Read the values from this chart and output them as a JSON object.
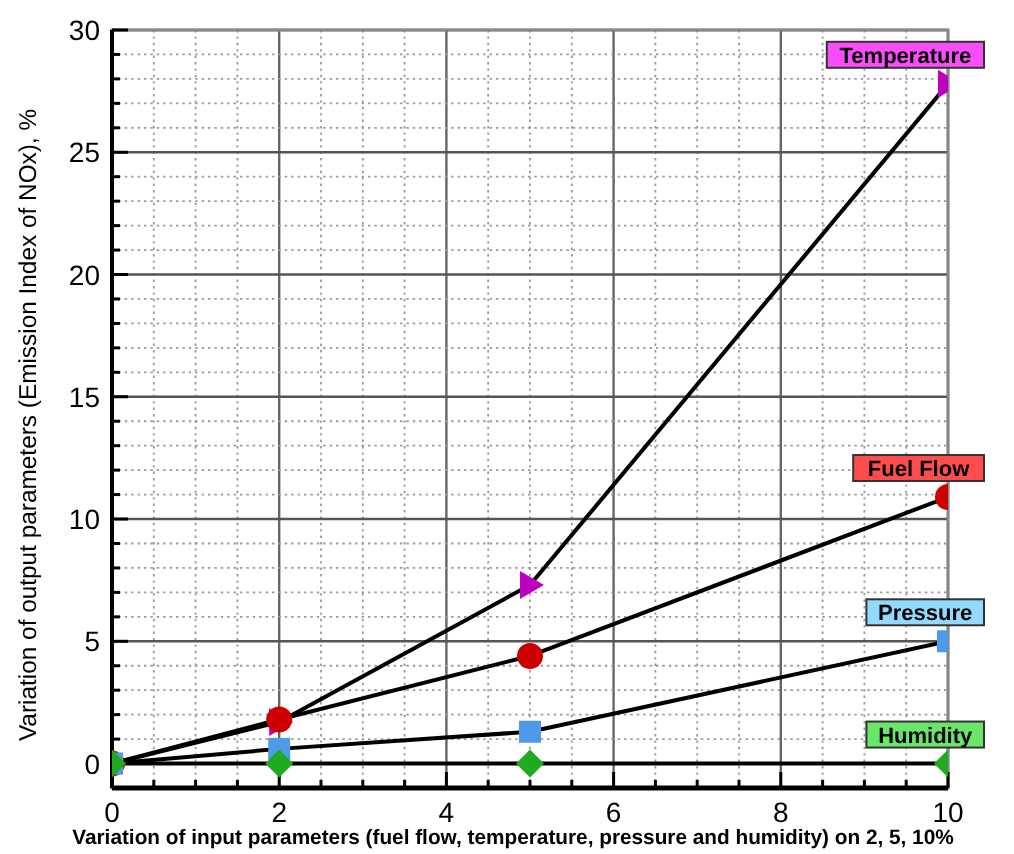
{
  "chart_data": {
    "type": "line",
    "xlabel": "Variation of input parameters (fuel flow, temperature, pressure and humidity) on 2, 5, 10%",
    "ylabel": "Variation of output parameters (Emission Index of NOx), %",
    "x": [
      0,
      2,
      5,
      10
    ],
    "series": [
      {
        "name": "Temperature",
        "color": "#c000c0",
        "marker": "triangle",
        "values": [
          0,
          1.7,
          7.3,
          27.8
        ]
      },
      {
        "name": "Fuel Flow",
        "color": "#cc0000",
        "marker": "circle",
        "values": [
          0,
          1.8,
          4.4,
          10.9
        ]
      },
      {
        "name": "Pressure",
        "color": "#4d9be8",
        "marker": "square",
        "values": [
          0,
          0.6,
          1.3,
          5.0
        ]
      },
      {
        "name": "Humidity",
        "color": "#1faa1f",
        "marker": "diamond",
        "values": [
          0,
          0,
          0,
          0
        ]
      }
    ],
    "xlim": [
      0,
      10
    ],
    "xticks": [
      0,
      {
        "value": 0.5,
        "label": null
      },
      {
        "value": 1,
        "label": null
      },
      {
        "value": 1.5,
        "label": null
      },
      2,
      {
        "value": 2.5,
        "label": null
      },
      {
        "value": 3,
        "label": null
      },
      {
        "value": 3.5,
        "label": null
      },
      4,
      {
        "value": 4.5,
        "label": null
      },
      {
        "value": 5,
        "label": null
      },
      {
        "value": 5.5,
        "label": null
      },
      6,
      {
        "value": 6.5,
        "label": null
      },
      {
        "value": 7,
        "label": null
      },
      {
        "value": 7.5,
        "label": null
      },
      8,
      {
        "value": 8.5,
        "label": null
      },
      {
        "value": 9,
        "label": null
      },
      {
        "value": 9.5,
        "label": null
      },
      10
    ],
    "ylim": [
      -1,
      30
    ],
    "yticks": [
      0,
      {
        "value": 1,
        "label": null
      },
      {
        "value": 2,
        "label": null
      },
      {
        "value": 3,
        "label": null
      },
      {
        "value": 4,
        "label": null
      },
      5,
      {
        "value": 6,
        "label": null
      },
      {
        "value": 7,
        "label": null
      },
      {
        "value": 8,
        "label": null
      },
      {
        "value": 9,
        "label": null
      },
      10,
      {
        "value": 11,
        "label": null
      },
      {
        "value": 12,
        "label": null
      },
      {
        "value": 13,
        "label": null
      },
      {
        "value": 14,
        "label": null
      },
      15,
      {
        "value": 16,
        "label": null
      },
      {
        "value": 17,
        "label": null
      },
      {
        "value": 18,
        "label": null
      },
      {
        "value": 19,
        "label": null
      },
      20,
      {
        "value": 21,
        "label": null
      },
      {
        "value": 22,
        "label": null
      },
      {
        "value": 23,
        "label": null
      },
      {
        "value": 24,
        "label": null
      },
      25,
      {
        "value": 26,
        "label": null
      },
      {
        "value": 27,
        "label": null
      },
      {
        "value": 28,
        "label": null
      },
      {
        "value": 29,
        "label": null
      },
      30
    ],
    "grid": true
  }
}
